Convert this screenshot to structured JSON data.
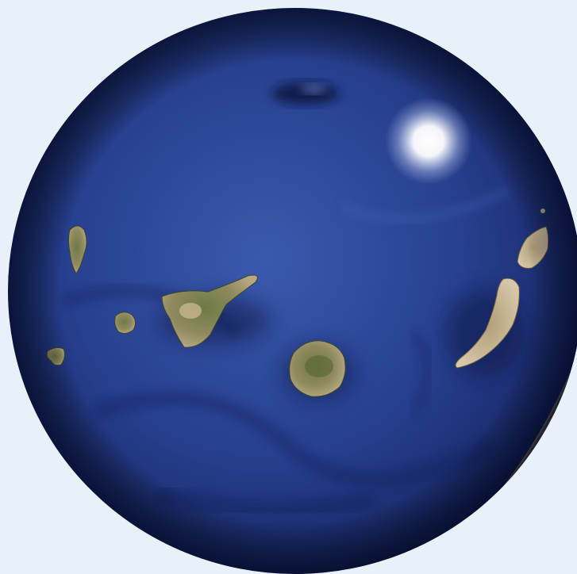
{
  "background_color": "#e9f1f8",
  "globe": {
    "ocean_deep": "#0e1d55",
    "ocean_mid": "#23388a",
    "ocean_light": "#3c5bb0",
    "land_green": "#5e6a3a",
    "land_tan": "#a39470",
    "land_dry": "#c9b99a",
    "mainland_sand": "#b49c77"
  },
  "features": [
    {
      "id": "la-palma",
      "kind": "island"
    },
    {
      "id": "la-gomera",
      "kind": "island"
    },
    {
      "id": "el-hierro",
      "kind": "island"
    },
    {
      "id": "tenerife",
      "kind": "island"
    },
    {
      "id": "gran-canaria",
      "kind": "island"
    },
    {
      "id": "fuerteventura",
      "kind": "island"
    },
    {
      "id": "lanzarote",
      "kind": "island"
    },
    {
      "id": "african-coast",
      "kind": "mainland"
    },
    {
      "id": "seamount",
      "kind": "seafloor"
    },
    {
      "id": "sun-glare",
      "kind": "glare"
    }
  ]
}
